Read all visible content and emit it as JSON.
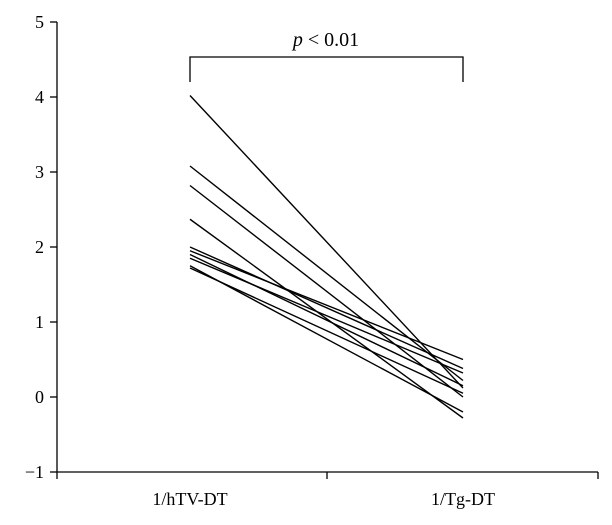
{
  "chart_data": {
    "type": "line",
    "categories": [
      "1/hTV-DT",
      "1/Tg-DT"
    ],
    "ylim": [
      -1,
      5
    ],
    "yticks": [
      "−1",
      "0",
      "1",
      "2",
      "3",
      "4",
      "5"
    ],
    "yticks_values": [
      -1,
      0,
      1,
      2,
      3,
      4,
      5
    ],
    "series": [
      {
        "values": [
          4.02,
          0.12
        ]
      },
      {
        "values": [
          3.08,
          0.22
        ]
      },
      {
        "values": [
          2.82,
          0.0
        ]
      },
      {
        "values": [
          2.37,
          -0.28
        ]
      },
      {
        "values": [
          2.0,
          0.38
        ]
      },
      {
        "values": [
          1.95,
          0.5
        ]
      },
      {
        "values": [
          1.9,
          0.15
        ]
      },
      {
        "values": [
          1.85,
          0.32
        ]
      },
      {
        "values": [
          1.75,
          -0.2
        ]
      },
      {
        "values": [
          1.72,
          0.05
        ]
      }
    ],
    "annotation": {
      "p_label": "p",
      "rest_label": " < 0.01"
    }
  }
}
